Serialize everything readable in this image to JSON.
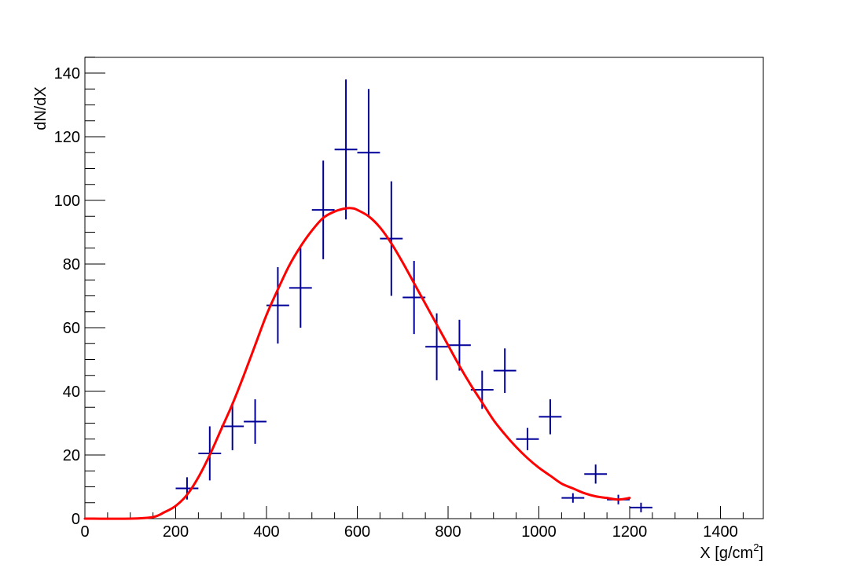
{
  "chart_data": {
    "type": "scatter",
    "xlabel": "X [g/cm",
    "xlabel_sup": "2",
    "xlabel_close": "]",
    "ylabel": "dN/dX",
    "xlim": [
      0,
      1500
    ],
    "ylim": [
      0,
      145
    ],
    "x_ticks": [
      0,
      200,
      400,
      600,
      800,
      1000,
      1200,
      1400
    ],
    "y_ticks": [
      0,
      20,
      40,
      60,
      80,
      100,
      120,
      140
    ],
    "x_minor_step": 50,
    "y_minor_step": 5,
    "grid": false,
    "series": [
      {
        "kind": "errorbars",
        "color": "#000099",
        "bin_half_width": 25,
        "points": [
          {
            "x": 225,
            "y": 9.5,
            "err": 3.5
          },
          {
            "x": 275,
            "y": 20.5,
            "err": 8.5
          },
          {
            "x": 325,
            "y": 29,
            "err": 7.5
          },
          {
            "x": 375,
            "y": 30.5,
            "err": 7
          },
          {
            "x": 425,
            "y": 67,
            "err": 12
          },
          {
            "x": 475,
            "y": 72.5,
            "err": 12.5
          },
          {
            "x": 525,
            "y": 97,
            "err": 15.5
          },
          {
            "x": 575,
            "y": 116,
            "err": 22
          },
          {
            "x": 625,
            "y": 115,
            "err": 20
          },
          {
            "x": 675,
            "y": 88,
            "err": 18
          },
          {
            "x": 725,
            "y": 69.5,
            "err": 11.5
          },
          {
            "x": 775,
            "y": 54,
            "err": 10.5
          },
          {
            "x": 825,
            "y": 54.5,
            "err": 8
          },
          {
            "x": 875,
            "y": 40.5,
            "err": 6
          },
          {
            "x": 925,
            "y": 46.5,
            "err": 7
          },
          {
            "x": 975,
            "y": 25,
            "err": 3.5
          },
          {
            "x": 1025,
            "y": 32,
            "err": 5.5
          },
          {
            "x": 1075,
            "y": 6.5,
            "err": 1.5
          },
          {
            "x": 1125,
            "y": 14,
            "err": 3
          },
          {
            "x": 1175,
            "y": 6,
            "err": 1.5
          },
          {
            "x": 1225,
            "y": 3.5,
            "err": 1.5
          }
        ]
      },
      {
        "kind": "line",
        "color": "#ff0000",
        "x": [
          0,
          100,
          150,
          175,
          200,
          225,
          250,
          275,
          300,
          325,
          350,
          375,
          400,
          425,
          450,
          475,
          500,
          525,
          550,
          575,
          590,
          600,
          625,
          650,
          675,
          700,
          725,
          750,
          775,
          800,
          825,
          850,
          875,
          900,
          925,
          950,
          975,
          1000,
          1025,
          1050,
          1075,
          1100,
          1125,
          1150,
          1175,
          1200
        ],
        "y": [
          0,
          0,
          0.5,
          2,
          4,
          7.5,
          13,
          20,
          28,
          36,
          45,
          54.5,
          64,
          72,
          79.5,
          85.5,
          90.5,
          94.5,
          96.5,
          97.5,
          97.5,
          97,
          95,
          91.5,
          86.5,
          80.5,
          74,
          67.5,
          61,
          54.5,
          48,
          42,
          36.5,
          31,
          26.5,
          22.5,
          19,
          16,
          13.5,
          11,
          9.5,
          8,
          7,
          6.5,
          6,
          6.5
        ]
      }
    ]
  }
}
